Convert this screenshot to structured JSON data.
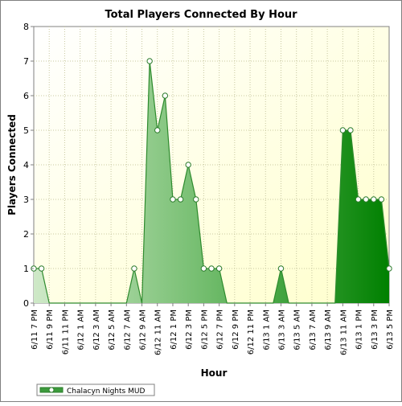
{
  "chart_data": {
    "type": "area",
    "title": "Total Players Connected By Hour",
    "xlabel": "Hour",
    "ylabel": "Players Connected",
    "ylim": [
      0,
      8
    ],
    "yticks": [
      0,
      1,
      2,
      3,
      4,
      5,
      6,
      7,
      8
    ],
    "x": [
      "6/11 7 PM",
      "6/11 8 PM",
      "6/11 9 PM",
      "6/11 10 PM",
      "6/11 11 PM",
      "6/12 12 AM",
      "6/12 1 AM",
      "6/12 2 AM",
      "6/12 3 AM",
      "6/12 4 AM",
      "6/12 5 AM",
      "6/12 6 AM",
      "6/12 7 AM",
      "6/12 8 AM",
      "6/12 9 AM",
      "6/12 10 AM",
      "6/12 11 AM",
      "6/12 12 PM",
      "6/12 1 PM",
      "6/12 2 PM",
      "6/12 3 PM",
      "6/12 4 PM",
      "6/12 5 PM",
      "6/12 6 PM",
      "6/12 7 PM",
      "6/12 8 PM",
      "6/12 9 PM",
      "6/12 10 PM",
      "6/12 11 PM",
      "6/13 12 AM",
      "6/13 1 AM",
      "6/13 2 AM",
      "6/13 3 AM",
      "6/13 4 AM",
      "6/13 5 AM",
      "6/13 6 AM",
      "6/13 7 AM",
      "6/13 8 AM",
      "6/13 9 AM",
      "6/13 10 AM",
      "6/13 11 AM",
      "6/13 12 PM",
      "6/13 1 PM",
      "6/13 2 PM",
      "6/13 3 PM",
      "6/13 4 PM",
      "6/13 5 PM"
    ],
    "xtick_labels": [
      "6/11 7 PM",
      "6/11 9 PM",
      "6/11 11 PM",
      "6/12 1 AM",
      "6/12 3 AM",
      "6/12 5 AM",
      "6/12 7 AM",
      "6/12 9 AM",
      "6/12 11 AM",
      "6/12 1 PM",
      "6/12 3 PM",
      "6/12 5 PM",
      "6/12 7 PM",
      "6/12 9 PM",
      "6/12 11 PM",
      "6/13 1 AM",
      "6/13 3 AM",
      "6/13 5 AM",
      "6/13 7 AM",
      "6/13 9 AM",
      "6/13 11 AM",
      "6/13 1 PM",
      "6/13 3 PM",
      "6/13 5 PM"
    ],
    "series": [
      {
        "name": "Chalacyn Nights MUD",
        "values": [
          1,
          1,
          0,
          0,
          0,
          0,
          0,
          0,
          0,
          0,
          0,
          0,
          0,
          1,
          0,
          7,
          5,
          6,
          3,
          3,
          4,
          3,
          1,
          1,
          1,
          0,
          0,
          0,
          0,
          0,
          0,
          0,
          1,
          0,
          0,
          0,
          0,
          0,
          0,
          0,
          5,
          5,
          3,
          3,
          3,
          3,
          1
        ]
      }
    ],
    "grid": true,
    "legend": "bottom-left",
    "colors": {
      "line": "#2e8b2e",
      "fill_light": "#c2e3bc",
      "fill_dark": "#008000",
      "plot_bg_light": "#ffffcc",
      "plot_bg_white": "#ffffff",
      "grid": "#c8c8a0"
    }
  }
}
